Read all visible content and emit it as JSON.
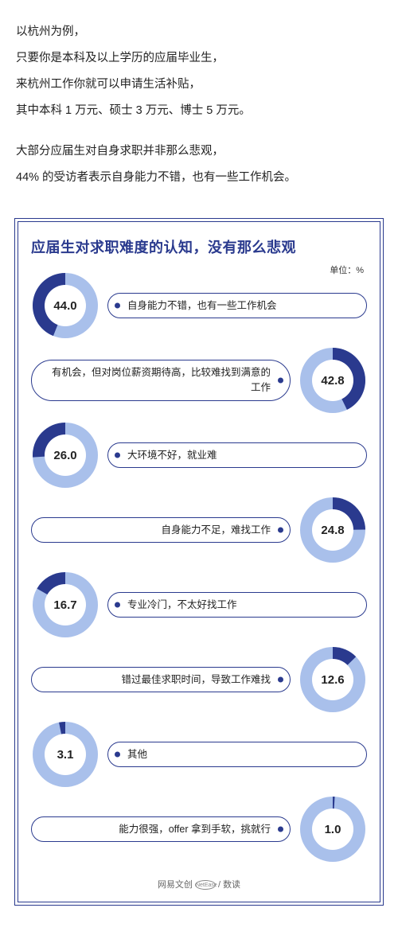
{
  "intro": {
    "lines": [
      "以杭州为例，",
      "只要你是本科及以上学历的应届毕业生，",
      "来杭州工作你就可以申请生活补贴，",
      "其中本科 1 万元、硕士 3 万元、博士 5 万元。"
    ],
    "lines2": [
      "大部分应届生对自身求职并非那么悲观，",
      "44% 的受访者表示自身能力不错，也有一些工作机会。"
    ]
  },
  "chart": {
    "title": "应届生对求职难度的认知，没有那么悲观",
    "unit_label": "单位：%",
    "ring_bg": "#a9c0eb",
    "ring_fg": "#2a3a8e",
    "inner_bg": "#ffffff",
    "ring_outer_r": 41,
    "ring_inner_r": 26,
    "value_fontsize": 15,
    "label_fontsize": 12.5,
    "title_fontsize": 18,
    "title_color": "#2a3a8e",
    "border_color": "#2a3a8e",
    "items": [
      {
        "value": 44.0,
        "label": "自身能力不错，也有一些工作机会",
        "side": "left"
      },
      {
        "value": 42.8,
        "label": "有机会，但对岗位薪资期待高，比较难找到满意的工作",
        "side": "right"
      },
      {
        "value": 26.0,
        "label": "大环境不好，就业难",
        "side": "left"
      },
      {
        "value": 24.8,
        "label": "自身能力不足，难找工作",
        "side": "right"
      },
      {
        "value": 16.7,
        "label": "专业冷门，不太好找工作",
        "side": "left"
      },
      {
        "value": 12.6,
        "label": "错过最佳求职时间，导致工作难找",
        "side": "right"
      },
      {
        "value": 3.1,
        "label": "其他",
        "side": "left"
      },
      {
        "value": 1.0,
        "label": "能力很强，offer 拿到手软，挑就行",
        "side": "right"
      }
    ],
    "footer_left": "网易文创",
    "footer_oval": "NetEase",
    "footer_right": "数读"
  }
}
